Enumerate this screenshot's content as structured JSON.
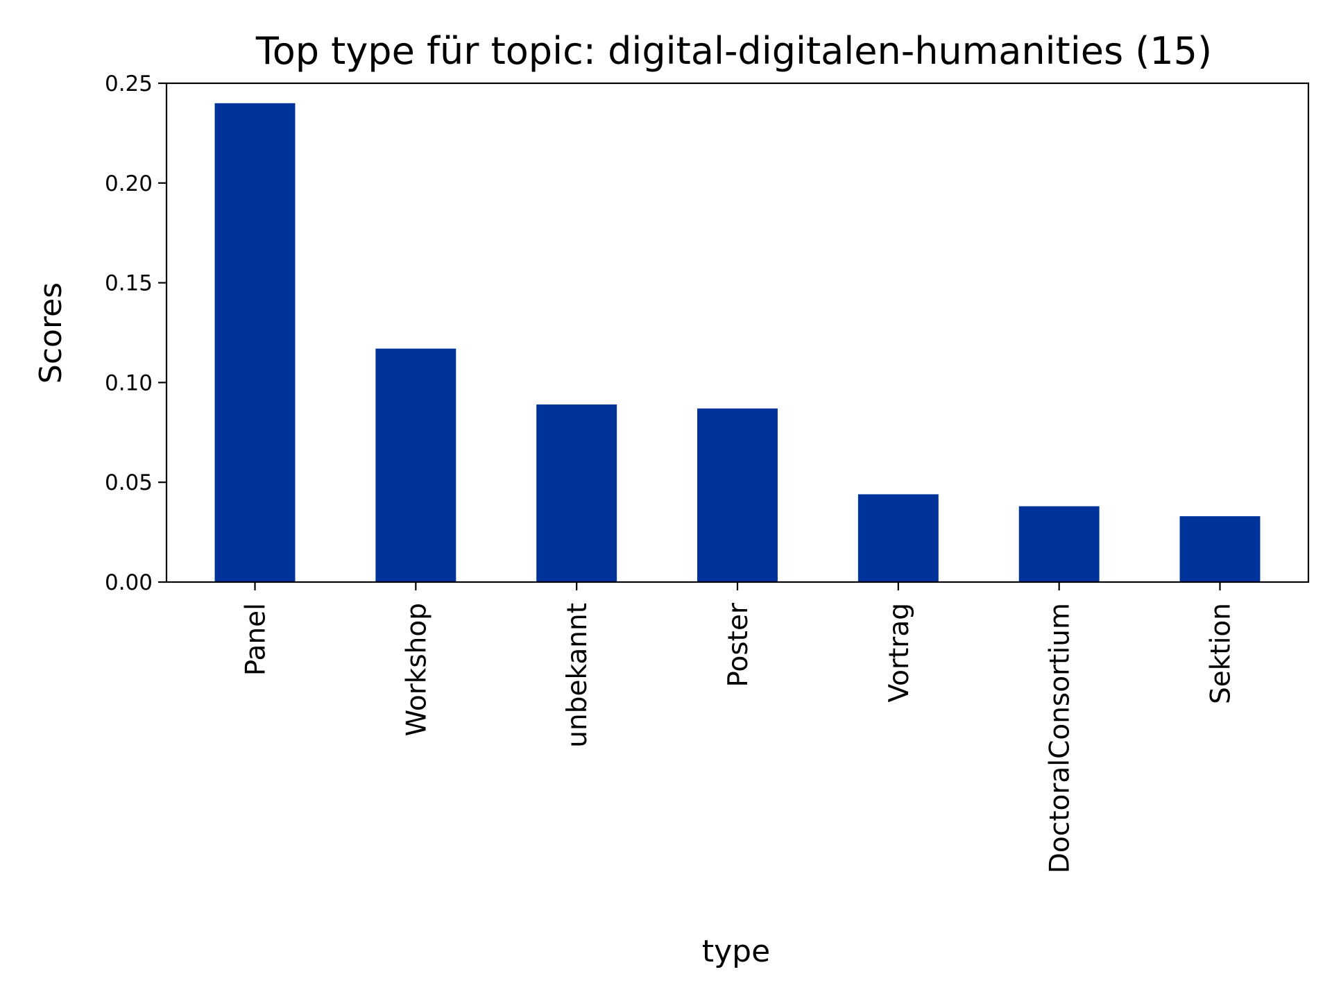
{
  "chart_data": {
    "type": "bar",
    "title": "Top type für topic: digital-digitalen-humanities (15)",
    "xlabel": "type",
    "ylabel": "Scores",
    "categories": [
      "Panel",
      "Workshop",
      "unbekannt",
      "Poster",
      "Vortrag",
      "DoctoralConsortium",
      "Sektion"
    ],
    "values": [
      0.24,
      0.117,
      0.089,
      0.087,
      0.044,
      0.038,
      0.033
    ],
    "ylim": [
      0,
      0.25
    ],
    "yticks": [
      "0.00",
      "0.05",
      "0.10",
      "0.15",
      "0.20",
      "0.25"
    ],
    "bar_color": "#003399",
    "grid": false,
    "legend": "none"
  }
}
